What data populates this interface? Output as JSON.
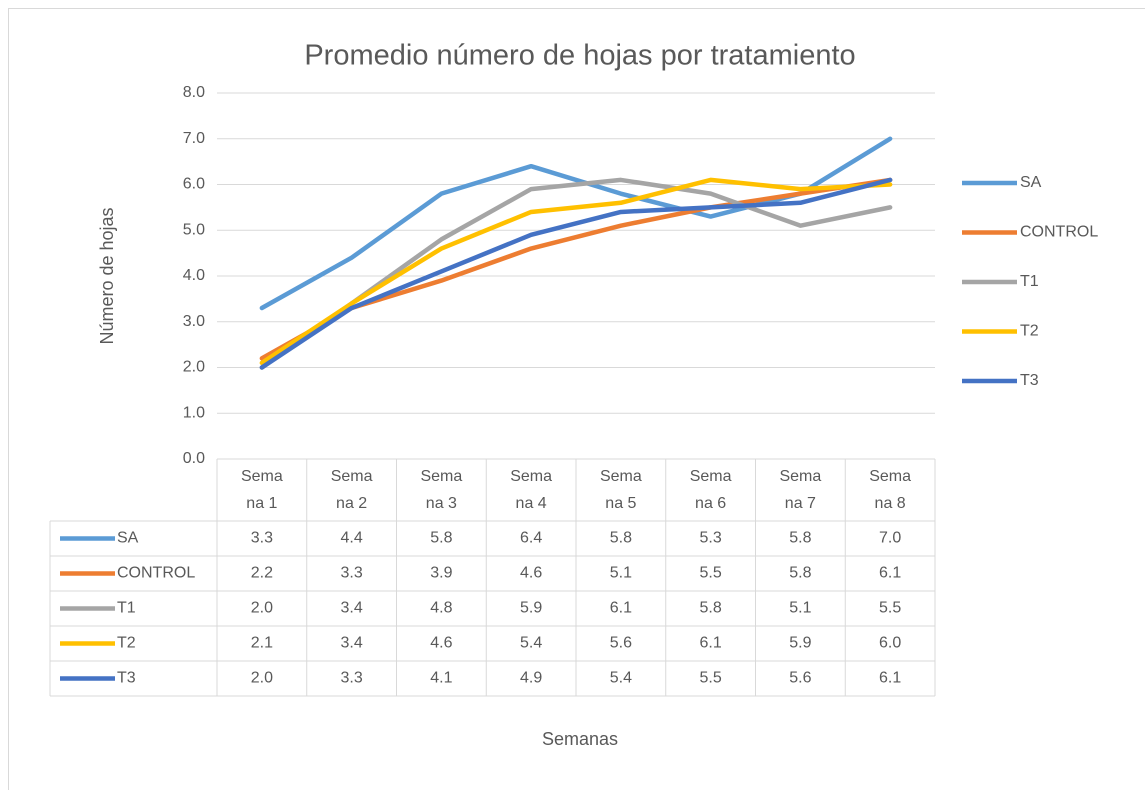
{
  "chart_data": {
    "type": "line",
    "title": "Promedio número de hojas por tratamiento",
    "x_label": "Semanas",
    "y_label": "Número de hojas",
    "categories": [
      "Semana 1",
      "Semana 2",
      "Semana 3",
      "Semana 4",
      "Semana 5",
      "Semana 6",
      "Semana 7",
      "Semana 8"
    ],
    "series": [
      {
        "name": "SA",
        "color": "#5b9bd5",
        "values": [
          3.3,
          4.4,
          5.8,
          6.4,
          5.8,
          5.3,
          5.8,
          7.0
        ],
        "value_labels": [
          "3.3",
          "4.4",
          "5.8",
          "6.4",
          "5.8",
          "5.3",
          "5.8",
          "7.0"
        ]
      },
      {
        "name": "CONTROL",
        "color": "#ed7d31",
        "values": [
          2.2,
          3.3,
          3.9,
          4.6,
          5.1,
          5.5,
          5.8,
          6.1
        ],
        "value_labels": [
          "2.2",
          "3.3",
          "3.9",
          "4.6",
          "5.1",
          "5.5",
          "5.8",
          "6.1"
        ]
      },
      {
        "name": "T1",
        "color": "#a5a5a5",
        "values": [
          2.0,
          3.4,
          4.8,
          5.9,
          6.1,
          5.8,
          5.1,
          5.5
        ],
        "value_labels": [
          "2.0",
          "3.4",
          "4.8",
          "5.9",
          "6.1",
          "5.8",
          "5.1",
          "5.5"
        ]
      },
      {
        "name": "T2",
        "color": "#ffc000",
        "values": [
          2.1,
          3.4,
          4.6,
          5.4,
          5.6,
          6.1,
          5.9,
          6.0
        ],
        "value_labels": [
          "2.1",
          "3.4",
          "4.6",
          "5.4",
          "5.6",
          "6.1",
          "5.9",
          "6.0"
        ]
      },
      {
        "name": "T3",
        "color": "#4472c4",
        "values": [
          2.0,
          3.3,
          4.1,
          4.9,
          5.4,
          5.5,
          5.6,
          6.1
        ],
        "value_labels": [
          "2.0",
          "3.3",
          "4.1",
          "4.9",
          "5.4",
          "5.5",
          "5.6",
          "6.1"
        ]
      }
    ],
    "ylim": [
      0,
      8
    ],
    "yticks": [
      {
        "value": 0,
        "label": "0.0"
      },
      {
        "value": 1,
        "label": "1.0"
      },
      {
        "value": 2,
        "label": "2.0"
      },
      {
        "value": 3,
        "label": "3.0"
      },
      {
        "value": 4,
        "label": "4.0"
      },
      {
        "value": 5,
        "label": "5.0"
      },
      {
        "value": 6,
        "label": "6.0"
      },
      {
        "value": 7,
        "label": "7.0"
      },
      {
        "value": 8,
        "label": "8.0"
      }
    ],
    "grid": true,
    "legend": "right"
  }
}
